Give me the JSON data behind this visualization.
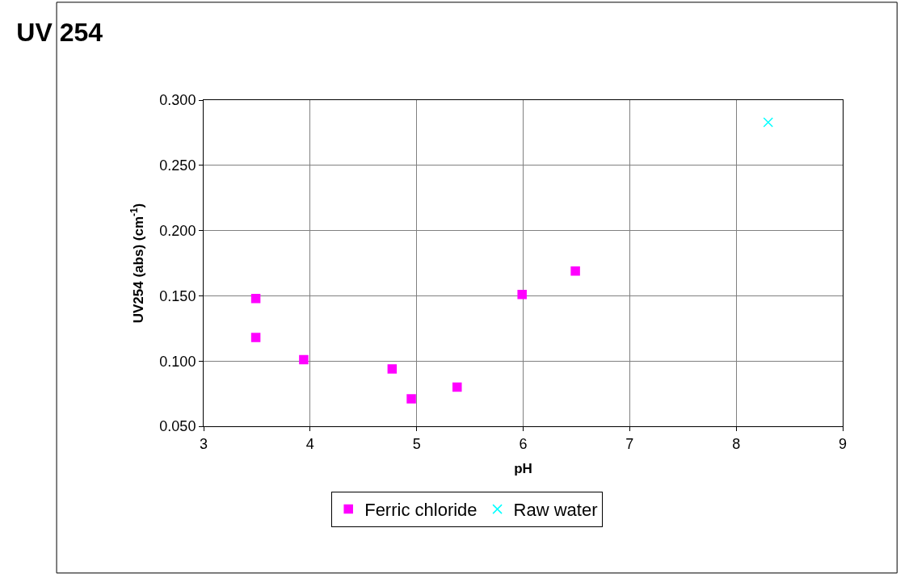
{
  "chart_data": {
    "type": "scatter",
    "title": "UV 254",
    "xlabel": "pH",
    "ylabel": "UV254 (abs) (cm$^{-1}$)",
    "xlim": [
      3,
      9
    ],
    "xticks": [
      3,
      4,
      5,
      6,
      7,
      8,
      9
    ],
    "ylim": [
      0.05,
      0.3
    ],
    "yticks": [
      {
        "value": 0.05,
        "label": "0.050"
      },
      {
        "value": 0.1,
        "label": "0.100"
      },
      {
        "value": 0.15,
        "label": "0.150"
      },
      {
        "value": 0.2,
        "label": "0.200"
      },
      {
        "value": 0.25,
        "label": "0.250"
      },
      {
        "value": 0.3,
        "label": "0.300"
      }
    ],
    "grid": true,
    "legend": "bottom",
    "series": [
      {
        "name": "Ferric chloride",
        "color": "#ff00ff",
        "marker": "square",
        "x": [
          3.49,
          3.49,
          3.94,
          4.77,
          4.95,
          5.38,
          5.99,
          6.49
        ],
        "values": [
          0.148,
          0.118,
          0.101,
          0.094,
          0.071,
          0.08,
          0.151,
          0.169
        ]
      },
      {
        "name": "Raw water",
        "color": "#00ffff",
        "marker": "cross",
        "x": [
          8.3
        ],
        "values": [
          0.283
        ]
      }
    ]
  }
}
